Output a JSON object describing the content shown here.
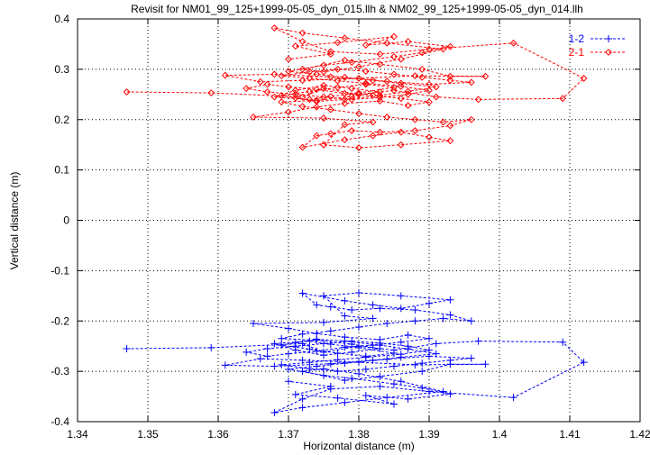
{
  "chart_data": {
    "type": "scatter",
    "title": "Revisit for NM01_99_125+1999-05-05_dyn_015.llh & NM02_99_125+1999-05-05_dyn_014.llh",
    "xlabel": "Horizontal distance (m)",
    "ylabel": "Vertical distance (m)",
    "xlim": [
      1.34,
      1.42
    ],
    "ylim": [
      -0.4,
      0.4
    ],
    "xticks": [
      "1.34",
      "1.35",
      "1.36",
      "1.37",
      "1.38",
      "1.39",
      "1.4",
      "1.41",
      "1.42"
    ],
    "yticks": [
      "0.4",
      "0.3",
      "0.2",
      "0.1",
      "0",
      "-0.1",
      "-0.2",
      "-0.3",
      "-0.4"
    ],
    "grid": true,
    "legend_position": "top-right",
    "series": [
      {
        "name": "1-2",
        "color": "#0000ff",
        "marker": "plus",
        "line": "dashed",
        "points": [
          [
            1.347,
            -0.255
          ],
          [
            1.359,
            -0.253
          ],
          [
            1.372,
            -0.245
          ],
          [
            1.375,
            -0.262
          ],
          [
            1.38,
            -0.25
          ],
          [
            1.385,
            -0.258
          ],
          [
            1.391,
            -0.245
          ],
          [
            1.397,
            -0.24
          ],
          [
            1.409,
            -0.242
          ],
          [
            1.412,
            -0.282
          ],
          [
            1.402,
            -0.352
          ],
          [
            1.39,
            -0.34
          ],
          [
            1.383,
            -0.33
          ],
          [
            1.376,
            -0.335
          ],
          [
            1.372,
            -0.355
          ],
          [
            1.368,
            -0.382
          ],
          [
            1.372,
            -0.372
          ],
          [
            1.378,
            -0.362
          ],
          [
            1.384,
            -0.352
          ],
          [
            1.392,
            -0.34
          ],
          [
            1.386,
            -0.32
          ],
          [
            1.38,
            -0.305
          ],
          [
            1.375,
            -0.295
          ],
          [
            1.372,
            -0.3
          ],
          [
            1.378,
            -0.318
          ],
          [
            1.383,
            -0.31
          ],
          [
            1.389,
            -0.3
          ],
          [
            1.393,
            -0.286
          ],
          [
            1.398,
            -0.286
          ],
          [
            1.388,
            -0.287
          ],
          [
            1.38,
            -0.282
          ],
          [
            1.372,
            -0.278
          ],
          [
            1.366,
            -0.275
          ],
          [
            1.361,
            -0.288
          ],
          [
            1.368,
            -0.29
          ],
          [
            1.376,
            -0.285
          ],
          [
            1.382,
            -0.278
          ],
          [
            1.386,
            -0.272
          ],
          [
            1.391,
            -0.265
          ],
          [
            1.387,
            -0.256
          ],
          [
            1.383,
            -0.248
          ],
          [
            1.378,
            -0.24
          ],
          [
            1.374,
            -0.236
          ],
          [
            1.371,
            -0.243
          ],
          [
            1.369,
            -0.248
          ],
          [
            1.373,
            -0.256
          ],
          [
            1.377,
            -0.264
          ],
          [
            1.381,
            -0.27
          ],
          [
            1.385,
            -0.264
          ],
          [
            1.38,
            -0.253
          ],
          [
            1.376,
            -0.246
          ],
          [
            1.373,
            -0.24
          ],
          [
            1.368,
            -0.245
          ],
          [
            1.371,
            -0.258
          ],
          [
            1.375,
            -0.268
          ],
          [
            1.379,
            -0.262
          ],
          [
            1.383,
            -0.255
          ],
          [
            1.379,
            -0.246
          ],
          [
            1.374,
            -0.238
          ],
          [
            1.369,
            -0.235
          ],
          [
            1.372,
            -0.226
          ],
          [
            1.376,
            -0.22
          ],
          [
            1.38,
            -0.212
          ],
          [
            1.384,
            -0.205
          ],
          [
            1.388,
            -0.2
          ],
          [
            1.392,
            -0.195
          ],
          [
            1.396,
            -0.2
          ],
          [
            1.393,
            -0.188
          ],
          [
            1.388,
            -0.178
          ],
          [
            1.383,
            -0.175
          ],
          [
            1.379,
            -0.178
          ],
          [
            1.376,
            -0.172
          ],
          [
            1.374,
            -0.168
          ],
          [
            1.372,
            -0.145
          ],
          [
            1.378,
            -0.16
          ],
          [
            1.382,
            -0.168
          ],
          [
            1.386,
            -0.175
          ],
          [
            1.39,
            -0.165
          ],
          [
            1.393,
            -0.158
          ],
          [
            1.386,
            -0.15
          ],
          [
            1.38,
            -0.144
          ],
          [
            1.375,
            -0.15
          ],
          [
            1.378,
            -0.19
          ],
          [
            1.382,
            -0.195
          ],
          [
            1.375,
            -0.203
          ],
          [
            1.365,
            -0.205
          ],
          [
            1.37,
            -0.215
          ],
          [
            1.374,
            -0.225
          ],
          [
            1.378,
            -0.232
          ],
          [
            1.383,
            -0.237
          ],
          [
            1.387,
            -0.228
          ],
          [
            1.39,
            -0.235
          ],
          [
            1.386,
            -0.242
          ],
          [
            1.382,
            -0.248
          ],
          [
            1.378,
            -0.252
          ],
          [
            1.374,
            -0.26
          ],
          [
            1.37,
            -0.265
          ],
          [
            1.367,
            -0.27
          ],
          [
            1.364,
            -0.262
          ],
          [
            1.367,
            -0.255
          ],
          [
            1.371,
            -0.25
          ],
          [
            1.375,
            -0.245
          ],
          [
            1.379,
            -0.24
          ],
          [
            1.383,
            -0.244
          ],
          [
            1.387,
            -0.25
          ],
          [
            1.39,
            -0.258
          ],
          [
            1.386,
            -0.266
          ],
          [
            1.381,
            -0.272
          ],
          [
            1.377,
            -0.277
          ],
          [
            1.373,
            -0.282
          ],
          [
            1.369,
            -0.287
          ],
          [
            1.373,
            -0.295
          ],
          [
            1.377,
            -0.3
          ],
          [
            1.381,
            -0.296
          ],
          [
            1.385,
            -0.29
          ],
          [
            1.389,
            -0.284
          ],
          [
            1.393,
            -0.278
          ],
          [
            1.396,
            -0.274
          ],
          [
            1.39,
            -0.27
          ],
          [
            1.384,
            -0.276
          ],
          [
            1.378,
            -0.284
          ],
          [
            1.374,
            -0.29
          ],
          [
            1.37,
            -0.296
          ],
          [
            1.375,
            -0.308
          ],
          [
            1.379,
            -0.314
          ],
          [
            1.385,
            -0.325
          ],
          [
            1.389,
            -0.333
          ],
          [
            1.393,
            -0.345
          ],
          [
            1.387,
            -0.355
          ],
          [
            1.381,
            -0.348
          ],
          [
            1.385,
            -0.365
          ],
          [
            1.377,
            -0.353
          ],
          [
            1.371,
            -0.346
          ],
          [
            1.376,
            -0.33
          ],
          [
            1.37,
            -0.32
          ]
        ]
      },
      {
        "name": "2-1",
        "color": "#ff0000",
        "marker": "diamond",
        "line": "dashed",
        "points": [
          [
            1.347,
            0.255
          ],
          [
            1.359,
            0.253
          ],
          [
            1.372,
            0.245
          ],
          [
            1.375,
            0.262
          ],
          [
            1.38,
            0.25
          ],
          [
            1.385,
            0.258
          ],
          [
            1.391,
            0.245
          ],
          [
            1.397,
            0.24
          ],
          [
            1.409,
            0.242
          ],
          [
            1.412,
            0.282
          ],
          [
            1.402,
            0.352
          ],
          [
            1.39,
            0.34
          ],
          [
            1.383,
            0.33
          ],
          [
            1.376,
            0.335
          ],
          [
            1.372,
            0.355
          ],
          [
            1.368,
            0.382
          ],
          [
            1.372,
            0.372
          ],
          [
            1.378,
            0.362
          ],
          [
            1.384,
            0.352
          ],
          [
            1.392,
            0.34
          ],
          [
            1.386,
            0.32
          ],
          [
            1.38,
            0.305
          ],
          [
            1.375,
            0.295
          ],
          [
            1.372,
            0.3
          ],
          [
            1.378,
            0.318
          ],
          [
            1.383,
            0.31
          ],
          [
            1.389,
            0.3
          ],
          [
            1.393,
            0.286
          ],
          [
            1.398,
            0.286
          ],
          [
            1.388,
            0.287
          ],
          [
            1.38,
            0.282
          ],
          [
            1.372,
            0.278
          ],
          [
            1.366,
            0.275
          ],
          [
            1.361,
            0.288
          ],
          [
            1.368,
            0.29
          ],
          [
            1.376,
            0.285
          ],
          [
            1.382,
            0.278
          ],
          [
            1.386,
            0.272
          ],
          [
            1.391,
            0.265
          ],
          [
            1.387,
            0.256
          ],
          [
            1.383,
            0.248
          ],
          [
            1.378,
            0.24
          ],
          [
            1.374,
            0.236
          ],
          [
            1.371,
            0.243
          ],
          [
            1.369,
            0.248
          ],
          [
            1.373,
            0.256
          ],
          [
            1.377,
            0.264
          ],
          [
            1.381,
            0.27
          ],
          [
            1.385,
            0.264
          ],
          [
            1.38,
            0.253
          ],
          [
            1.376,
            0.246
          ],
          [
            1.373,
            0.24
          ],
          [
            1.368,
            0.245
          ],
          [
            1.371,
            0.258
          ],
          [
            1.375,
            0.268
          ],
          [
            1.379,
            0.262
          ],
          [
            1.383,
            0.255
          ],
          [
            1.379,
            0.246
          ],
          [
            1.374,
            0.238
          ],
          [
            1.369,
            0.235
          ],
          [
            1.372,
            0.226
          ],
          [
            1.376,
            0.22
          ],
          [
            1.38,
            0.212
          ],
          [
            1.384,
            0.205
          ],
          [
            1.388,
            0.2
          ],
          [
            1.392,
            0.195
          ],
          [
            1.396,
            0.2
          ],
          [
            1.393,
            0.188
          ],
          [
            1.388,
            0.178
          ],
          [
            1.383,
            0.175
          ],
          [
            1.379,
            0.178
          ],
          [
            1.376,
            0.172
          ],
          [
            1.374,
            0.168
          ],
          [
            1.372,
            0.145
          ],
          [
            1.378,
            0.16
          ],
          [
            1.382,
            0.168
          ],
          [
            1.386,
            0.175
          ],
          [
            1.39,
            0.165
          ],
          [
            1.393,
            0.158
          ],
          [
            1.386,
            0.15
          ],
          [
            1.38,
            0.144
          ],
          [
            1.375,
            0.15
          ],
          [
            1.378,
            0.19
          ],
          [
            1.382,
            0.195
          ],
          [
            1.375,
            0.203
          ],
          [
            1.365,
            0.205
          ],
          [
            1.37,
            0.215
          ],
          [
            1.374,
            0.225
          ],
          [
            1.378,
            0.232
          ],
          [
            1.383,
            0.237
          ],
          [
            1.387,
            0.228
          ],
          [
            1.39,
            0.235
          ],
          [
            1.386,
            0.242
          ],
          [
            1.382,
            0.248
          ],
          [
            1.378,
            0.252
          ],
          [
            1.374,
            0.26
          ],
          [
            1.37,
            0.265
          ],
          [
            1.367,
            0.27
          ],
          [
            1.364,
            0.262
          ],
          [
            1.367,
            0.255
          ],
          [
            1.371,
            0.25
          ],
          [
            1.375,
            0.245
          ],
          [
            1.379,
            0.24
          ],
          [
            1.383,
            0.244
          ],
          [
            1.387,
            0.25
          ],
          [
            1.39,
            0.258
          ],
          [
            1.386,
            0.266
          ],
          [
            1.381,
            0.272
          ],
          [
            1.377,
            0.277
          ],
          [
            1.373,
            0.282
          ],
          [
            1.369,
            0.287
          ],
          [
            1.373,
            0.295
          ],
          [
            1.377,
            0.3
          ],
          [
            1.381,
            0.296
          ],
          [
            1.385,
            0.29
          ],
          [
            1.389,
            0.284
          ],
          [
            1.393,
            0.278
          ],
          [
            1.396,
            0.274
          ],
          [
            1.39,
            0.27
          ],
          [
            1.384,
            0.276
          ],
          [
            1.378,
            0.284
          ],
          [
            1.374,
            0.29
          ],
          [
            1.37,
            0.296
          ],
          [
            1.375,
            0.308
          ],
          [
            1.379,
            0.314
          ],
          [
            1.385,
            0.325
          ],
          [
            1.389,
            0.333
          ],
          [
            1.393,
            0.345
          ],
          [
            1.387,
            0.355
          ],
          [
            1.381,
            0.348
          ],
          [
            1.385,
            0.365
          ],
          [
            1.377,
            0.353
          ],
          [
            1.371,
            0.346
          ],
          [
            1.376,
            0.33
          ],
          [
            1.37,
            0.32
          ]
        ]
      }
    ]
  }
}
